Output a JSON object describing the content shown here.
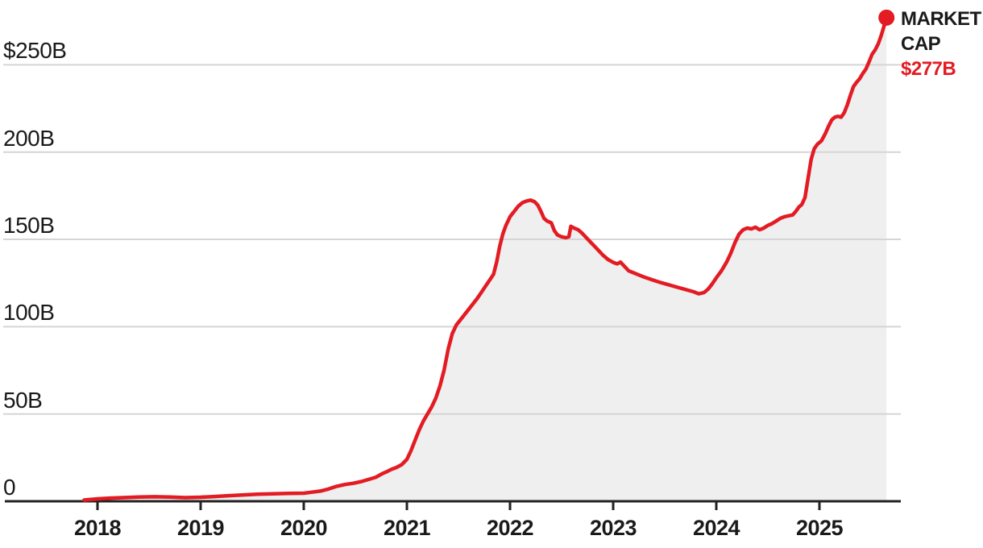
{
  "chart_data": {
    "type": "area",
    "series_name": "Market cap",
    "unit": "USD billions",
    "legend": "none",
    "grid": "horizontal",
    "x_axis": {
      "tick_values": [
        2018,
        2019,
        2020,
        2021,
        2022,
        2023,
        2024,
        2025
      ],
      "tick_labels": [
        "2018",
        "2019",
        "2020",
        "2021",
        "2022",
        "2023",
        "2024",
        "2025"
      ]
    },
    "y_axis": {
      "range_billions": [
        0,
        287
      ],
      "ticks": [
        {
          "value": 0,
          "label": "0"
        },
        {
          "value": 50,
          "label": "50B"
        },
        {
          "value": 100,
          "label": "100B"
        },
        {
          "value": 150,
          "label": "150B"
        },
        {
          "value": 200,
          "label": "200B"
        },
        {
          "value": 250,
          "label": "$250B"
        }
      ]
    },
    "annotation": {
      "line1": "MARKET",
      "line2": "CAP",
      "value": "$277B",
      "value_numeric_billions": 277
    },
    "colors": {
      "line": "#e31b23",
      "endpoint_dot": "#e31b23",
      "fill": "#efefef",
      "grid": "#d5d5d5",
      "baseline": "#222222",
      "text": "#1a1a1a",
      "annotation_value": "#e31b23"
    },
    "points": [
      [
        2017.87,
        0.7
      ],
      [
        2018.0,
        1.4
      ],
      [
        2018.12,
        1.8
      ],
      [
        2018.25,
        2.1
      ],
      [
        2018.4,
        2.4
      ],
      [
        2018.55,
        2.6
      ],
      [
        2018.7,
        2.4
      ],
      [
        2018.85,
        2.1
      ],
      [
        2019.0,
        2.3
      ],
      [
        2019.12,
        2.7
      ],
      [
        2019.25,
        3.1
      ],
      [
        2019.4,
        3.6
      ],
      [
        2019.55,
        4.0
      ],
      [
        2019.7,
        4.3
      ],
      [
        2019.85,
        4.5
      ],
      [
        2020.0,
        4.6
      ],
      [
        2020.08,
        5.2
      ],
      [
        2020.16,
        5.8
      ],
      [
        2020.24,
        7.0
      ],
      [
        2020.32,
        8.6
      ],
      [
        2020.4,
        9.6
      ],
      [
        2020.48,
        10.3
      ],
      [
        2020.56,
        11.3
      ],
      [
        2020.64,
        12.7
      ],
      [
        2020.7,
        13.8
      ],
      [
        2020.76,
        15.8
      ],
      [
        2020.8,
        16.8
      ],
      [
        2020.85,
        18.3
      ],
      [
        2020.9,
        19.4
      ],
      [
        2020.95,
        21.0
      ],
      [
        2021.0,
        24.0
      ],
      [
        2021.04,
        29
      ],
      [
        2021.08,
        35
      ],
      [
        2021.12,
        41
      ],
      [
        2021.16,
        46
      ],
      [
        2021.2,
        50
      ],
      [
        2021.24,
        54
      ],
      [
        2021.28,
        59
      ],
      [
        2021.32,
        66
      ],
      [
        2021.36,
        75
      ],
      [
        2021.4,
        87
      ],
      [
        2021.44,
        96
      ],
      [
        2021.48,
        101
      ],
      [
        2021.52,
        104
      ],
      [
        2021.56,
        107
      ],
      [
        2021.6,
        110
      ],
      [
        2021.64,
        113
      ],
      [
        2021.68,
        116
      ],
      [
        2021.72,
        119.5
      ],
      [
        2021.76,
        123
      ],
      [
        2021.8,
        126.5
      ],
      [
        2021.84,
        130
      ],
      [
        2021.87,
        137
      ],
      [
        2021.9,
        146
      ],
      [
        2021.93,
        153
      ],
      [
        2021.96,
        158
      ],
      [
        2022.0,
        163
      ],
      [
        2022.04,
        166
      ],
      [
        2022.08,
        169
      ],
      [
        2022.12,
        171
      ],
      [
        2022.16,
        172
      ],
      [
        2022.2,
        172.5
      ],
      [
        2022.24,
        171.5
      ],
      [
        2022.27,
        169.5
      ],
      [
        2022.3,
        166
      ],
      [
        2022.33,
        162
      ],
      [
        2022.36,
        160.5
      ],
      [
        2022.4,
        159.5
      ],
      [
        2022.43,
        155
      ],
      [
        2022.46,
        152.5
      ],
      [
        2022.5,
        151.5
      ],
      [
        2022.54,
        151
      ],
      [
        2022.57,
        151.5
      ],
      [
        2022.59,
        157.5
      ],
      [
        2022.62,
        156.5
      ],
      [
        2022.66,
        155.5
      ],
      [
        2022.7,
        153.5
      ],
      [
        2022.74,
        151
      ],
      [
        2022.78,
        148.5
      ],
      [
        2022.82,
        146
      ],
      [
        2022.86,
        143.5
      ],
      [
        2022.9,
        141
      ],
      [
        2022.95,
        138.5
      ],
      [
        2023.0,
        136.8
      ],
      [
        2023.04,
        136
      ],
      [
        2023.07,
        137
      ],
      [
        2023.11,
        134.5
      ],
      [
        2023.15,
        132
      ],
      [
        2023.22,
        130.3
      ],
      [
        2023.3,
        128.4
      ],
      [
        2023.38,
        126.8
      ],
      [
        2023.46,
        125.3
      ],
      [
        2023.54,
        124
      ],
      [
        2023.62,
        122.6
      ],
      [
        2023.7,
        121.3
      ],
      [
        2023.78,
        120
      ],
      [
        2023.83,
        118.8
      ],
      [
        2023.88,
        119.5
      ],
      [
        2023.92,
        121.5
      ],
      [
        2023.96,
        124.5
      ],
      [
        2024.0,
        128
      ],
      [
        2024.05,
        132
      ],
      [
        2024.1,
        137
      ],
      [
        2024.14,
        142
      ],
      [
        2024.18,
        148
      ],
      [
        2024.22,
        153
      ],
      [
        2024.26,
        155.5
      ],
      [
        2024.3,
        156.5
      ],
      [
        2024.34,
        156
      ],
      [
        2024.38,
        157
      ],
      [
        2024.42,
        155.5
      ],
      [
        2024.46,
        156.5
      ],
      [
        2024.5,
        158
      ],
      [
        2024.54,
        159
      ],
      [
        2024.58,
        160.5
      ],
      [
        2024.62,
        162
      ],
      [
        2024.66,
        163
      ],
      [
        2024.7,
        163.5
      ],
      [
        2024.74,
        164
      ],
      [
        2024.77,
        166
      ],
      [
        2024.8,
        168.5
      ],
      [
        2024.83,
        170
      ],
      [
        2024.86,
        174
      ],
      [
        2024.89,
        185
      ],
      [
        2024.92,
        196
      ],
      [
        2024.95,
        202
      ],
      [
        2024.98,
        204.5
      ],
      [
        2025.02,
        206.5
      ],
      [
        2025.06,
        211
      ],
      [
        2025.09,
        215
      ],
      [
        2025.12,
        218.5
      ],
      [
        2025.15,
        220
      ],
      [
        2025.18,
        220.5
      ],
      [
        2025.21,
        220
      ],
      [
        2025.24,
        222.5
      ],
      [
        2025.27,
        227
      ],
      [
        2025.3,
        232.5
      ],
      [
        2025.33,
        237.5
      ],
      [
        2025.36,
        240
      ],
      [
        2025.39,
        242
      ],
      [
        2025.42,
        245
      ],
      [
        2025.45,
        247.5
      ],
      [
        2025.48,
        251.5
      ],
      [
        2025.51,
        256
      ],
      [
        2025.54,
        258.5
      ],
      [
        2025.57,
        262
      ],
      [
        2025.6,
        267
      ],
      [
        2025.62,
        271
      ],
      [
        2025.65,
        277
      ]
    ]
  }
}
